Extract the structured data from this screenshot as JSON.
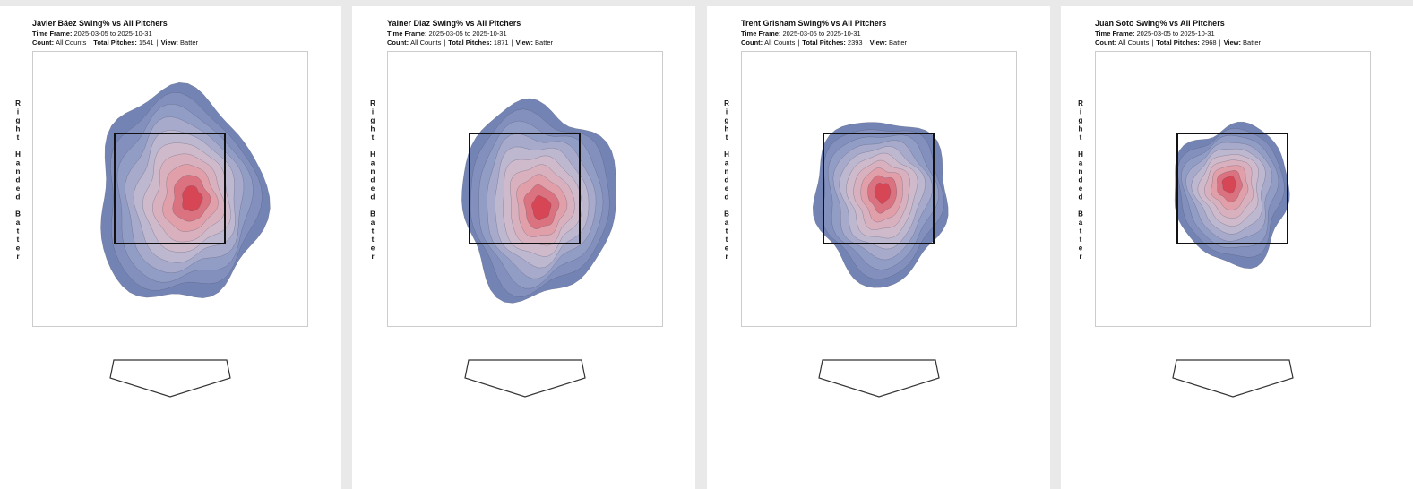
{
  "separator": "|",
  "panels": [
    {
      "title": "Javier Báez Swing% vs All Pitchers",
      "time_frame": {
        "label": "Time Frame:",
        "value": "2025-03-05 to 2025-10-31"
      },
      "count": {
        "label": "Count:",
        "value": "All Counts"
      },
      "total_pitches": {
        "label": "Total Pitches:",
        "value": 1541
      },
      "view": {
        "label": "View:",
        "value": "Batter"
      },
      "side_label": "Right Handed Batter"
    },
    {
      "title": "Yainer Diaz Swing% vs All Pitchers",
      "time_frame": {
        "label": "Time Frame:",
        "value": "2025-03-05 to 2025-10-31"
      },
      "count": {
        "label": "Count:",
        "value": "All Counts"
      },
      "total_pitches": {
        "label": "Total Pitches:",
        "value": 1871
      },
      "view": {
        "label": "View:",
        "value": "Batter"
      },
      "side_label": "Right Handed Batter"
    },
    {
      "title": "Trent Grisham Swing% vs All Pitchers",
      "time_frame": {
        "label": "Time Frame:",
        "value": "2025-03-05 to 2025-10-31"
      },
      "count": {
        "label": "Count:",
        "value": "All Counts"
      },
      "total_pitches": {
        "label": "Total Pitches:",
        "value": 2393
      },
      "view": {
        "label": "View:",
        "value": "Batter"
      },
      "side_label": "Right Handed Batter"
    },
    {
      "title": "Juan Soto Swing% vs All Pitchers",
      "time_frame": {
        "label": "Time Frame:",
        "value": "2025-03-05 to 2025-10-31"
      },
      "count": {
        "label": "Count:",
        "value": "All Counts"
      },
      "total_pitches": {
        "label": "Total Pitches:",
        "value": 2968
      },
      "view": {
        "label": "View:",
        "value": "Batter"
      },
      "side_label": "Right Handed Batter"
    }
  ]
}
